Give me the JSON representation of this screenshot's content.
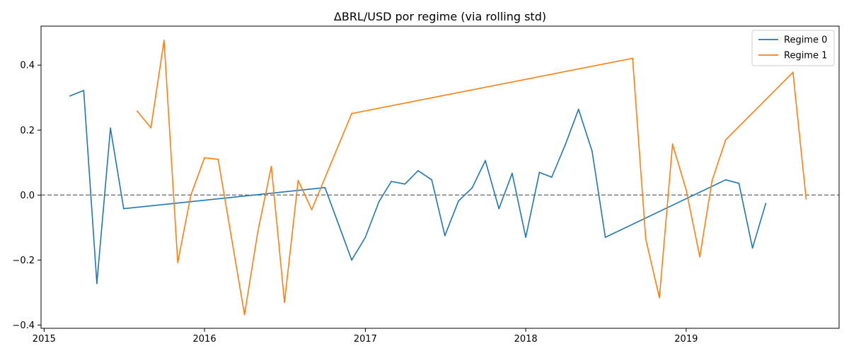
{
  "chart_data": {
    "type": "line",
    "title": "ΔBRL/USD por regime (via rolling std)",
    "xlabel": "",
    "ylabel": "",
    "x_axis": "date",
    "xlim": [
      "2014-12-25",
      "2019-12-15"
    ],
    "ylim": [
      -0.41,
      0.52
    ],
    "x_ticks": [
      {
        "date": "2015-01-01",
        "label": "2015"
      },
      {
        "date": "2016-01-01",
        "label": "2016"
      },
      {
        "date": "2017-01-01",
        "label": "2017"
      },
      {
        "date": "2018-01-01",
        "label": "2018"
      },
      {
        "date": "2019-01-01",
        "label": "2019"
      }
    ],
    "y_ticks": [
      {
        "value": -0.4,
        "label": "−0.4"
      },
      {
        "value": -0.2,
        "label": "−0.2"
      },
      {
        "value": 0.0,
        "label": "0.0"
      },
      {
        "value": 0.2,
        "label": "0.2"
      },
      {
        "value": 0.4,
        "label": "0.4"
      }
    ],
    "reference_line": {
      "y": 0.0,
      "style": "dashed",
      "color": "#808080"
    },
    "grid": false,
    "legend_position": "top-right",
    "series": [
      {
        "name": "Regime 0",
        "color": "#1f77b4",
        "points": [
          {
            "x": "2015-03-01",
            "y": 0.305
          },
          {
            "x": "2015-04-01",
            "y": 0.322
          },
          {
            "x": "2015-05-01",
            "y": -0.272
          },
          {
            "x": "2015-06-01",
            "y": 0.206
          },
          {
            "x": "2015-07-01",
            "y": -0.042
          },
          {
            "x": "2016-10-01",
            "y": 0.023
          },
          {
            "x": "2016-11-01",
            "y": -0.09
          },
          {
            "x": "2016-12-01",
            "y": -0.2
          },
          {
            "x": "2017-01-01",
            "y": -0.13
          },
          {
            "x": "2017-02-01",
            "y": -0.02
          },
          {
            "x": "2017-03-01",
            "y": 0.042
          },
          {
            "x": "2017-04-01",
            "y": 0.034
          },
          {
            "x": "2017-05-01",
            "y": 0.075
          },
          {
            "x": "2017-06-01",
            "y": 0.047
          },
          {
            "x": "2017-07-01",
            "y": -0.125
          },
          {
            "x": "2017-08-01",
            "y": -0.018
          },
          {
            "x": "2017-09-01",
            "y": 0.022
          },
          {
            "x": "2017-10-01",
            "y": 0.106
          },
          {
            "x": "2017-11-01",
            "y": -0.042
          },
          {
            "x": "2017-12-01",
            "y": 0.067
          },
          {
            "x": "2018-01-01",
            "y": -0.13
          },
          {
            "x": "2018-02-01",
            "y": 0.07
          },
          {
            "x": "2018-03-01",
            "y": 0.055
          },
          {
            "x": "2018-04-01",
            "y": 0.155
          },
          {
            "x": "2018-05-01",
            "y": 0.264
          },
          {
            "x": "2018-06-01",
            "y": 0.135
          },
          {
            "x": "2018-07-01",
            "y": -0.13
          },
          {
            "x": "2019-04-01",
            "y": 0.047
          },
          {
            "x": "2019-05-01",
            "y": 0.036
          },
          {
            "x": "2019-06-01",
            "y": -0.163
          },
          {
            "x": "2019-07-01",
            "y": -0.026
          }
        ]
      },
      {
        "name": "Regime 1",
        "color": "#ff7f0e",
        "points": [
          {
            "x": "2015-08-01",
            "y": 0.258
          },
          {
            "x": "2015-09-01",
            "y": 0.207
          },
          {
            "x": "2015-10-01",
            "y": 0.476
          },
          {
            "x": "2015-11-01",
            "y": -0.208
          },
          {
            "x": "2015-12-01",
            "y": 0.0
          },
          {
            "x": "2016-01-01",
            "y": 0.115
          },
          {
            "x": "2016-02-01",
            "y": 0.11
          },
          {
            "x": "2016-03-01",
            "y": -0.12
          },
          {
            "x": "2016-04-01",
            "y": -0.368
          },
          {
            "x": "2016-05-01",
            "y": -0.115
          },
          {
            "x": "2016-06-01",
            "y": 0.088
          },
          {
            "x": "2016-07-01",
            "y": -0.33
          },
          {
            "x": "2016-08-01",
            "y": 0.045
          },
          {
            "x": "2016-09-01",
            "y": -0.045
          },
          {
            "x": "2016-12-01",
            "y": 0.251
          },
          {
            "x": "2018-09-01",
            "y": 0.421
          },
          {
            "x": "2018-10-01",
            "y": -0.135
          },
          {
            "x": "2018-11-01",
            "y": -0.316
          },
          {
            "x": "2018-12-01",
            "y": 0.157
          },
          {
            "x": "2019-01-01",
            "y": 0.016
          },
          {
            "x": "2019-02-01",
            "y": -0.19
          },
          {
            "x": "2019-03-01",
            "y": 0.045
          },
          {
            "x": "2019-04-01",
            "y": 0.17
          },
          {
            "x": "2019-09-01",
            "y": 0.378
          },
          {
            "x": "2019-10-01",
            "y": -0.012
          }
        ]
      }
    ]
  }
}
